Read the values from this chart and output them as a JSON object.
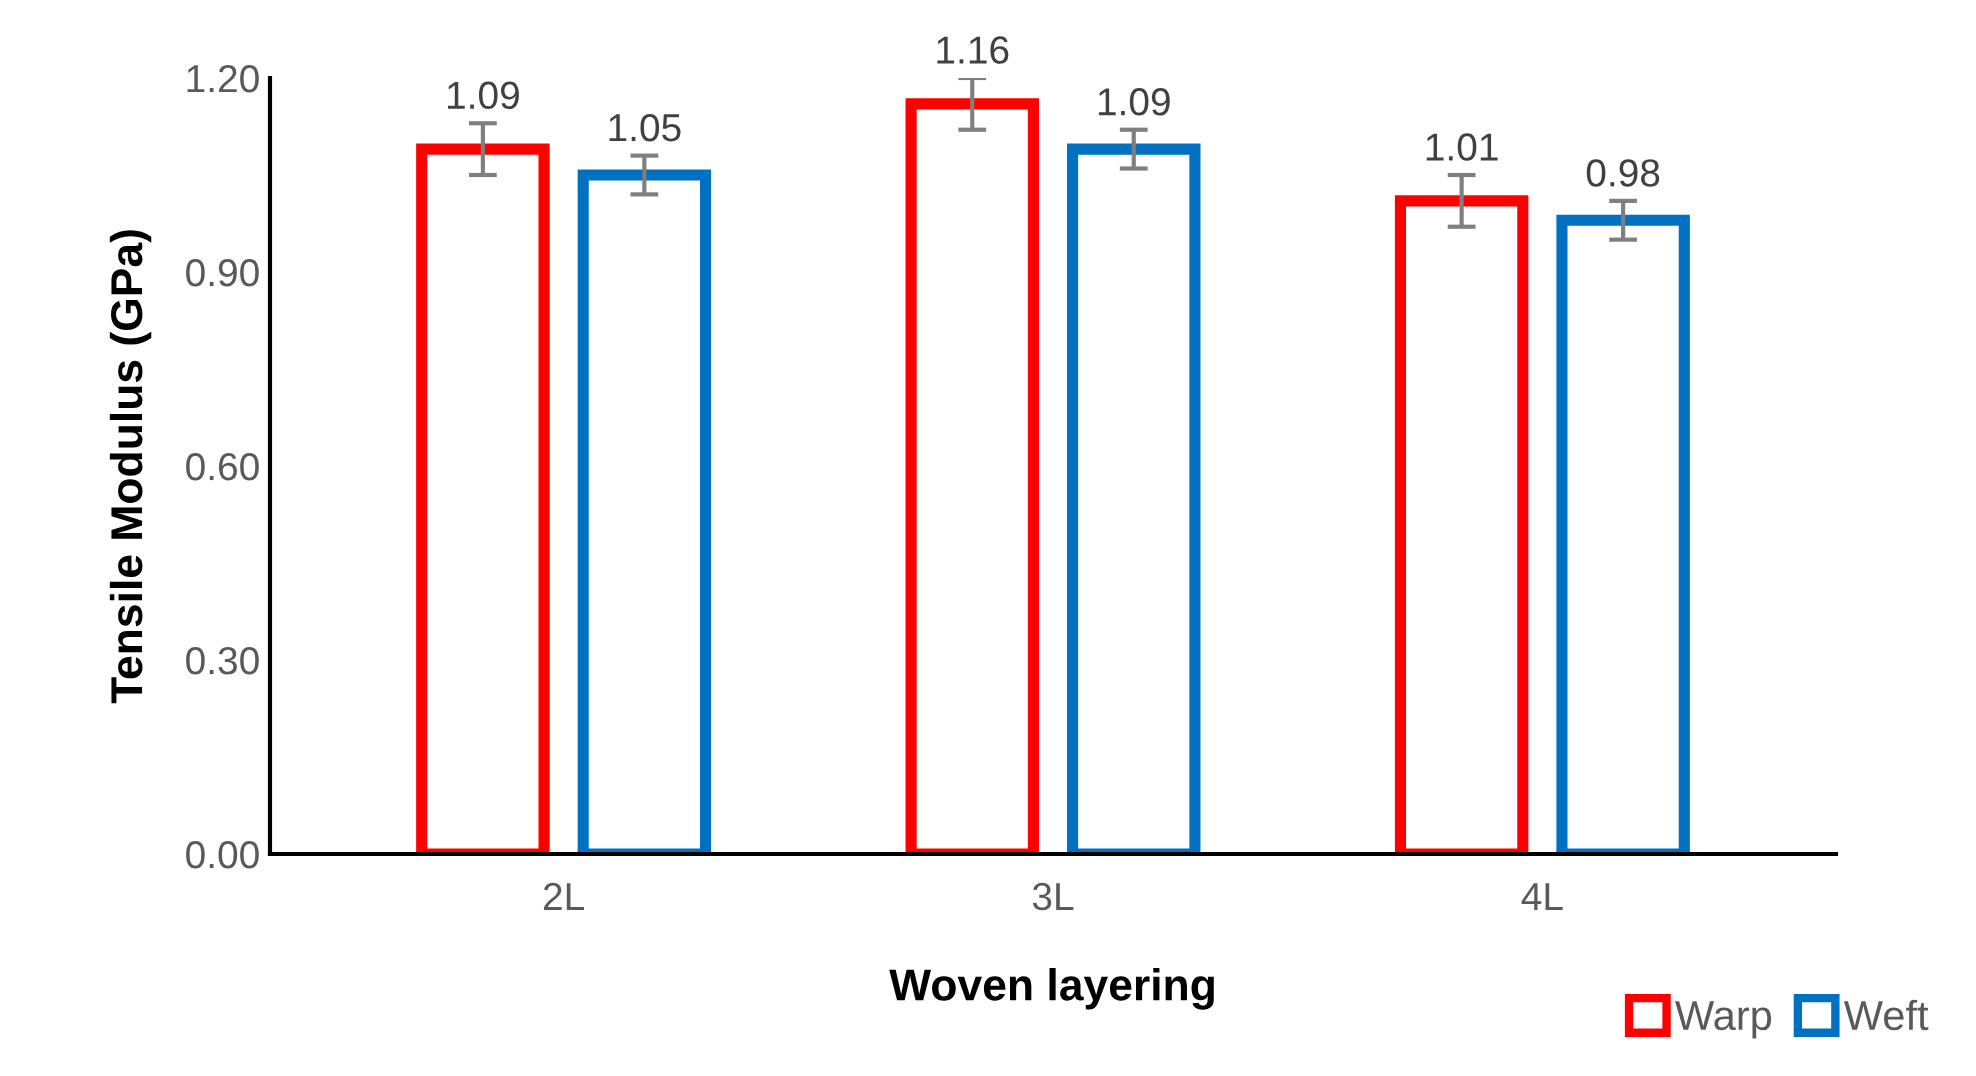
{
  "chart_data": {
    "type": "bar",
    "xlabel": "Woven layering",
    "ylabel": "Tensile Modulus (GPa)",
    "categories": [
      "2L",
      "3L",
      "4L"
    ],
    "series": [
      {
        "name": "Warp",
        "color": "#ff0000",
        "values": [
          1.09,
          1.16,
          1.01
        ],
        "errors": [
          0.04,
          0.04,
          0.04
        ]
      },
      {
        "name": "Weft",
        "color": "#0070c0",
        "values": [
          1.05,
          1.09,
          0.98
        ],
        "errors": [
          0.03,
          0.03,
          0.03
        ]
      }
    ],
    "ylim": [
      0,
      1.2
    ],
    "yticks": [
      {
        "value": 0,
        "label": "0.00"
      },
      {
        "value": 0.3,
        "label": "0.30"
      },
      {
        "value": 0.6,
        "label": "0.60"
      },
      {
        "value": 0.9,
        "label": "0.90"
      },
      {
        "value": 1.2,
        "label": "1.20"
      }
    ],
    "data_labels": true,
    "grid": false,
    "legend": "bottom right"
  }
}
